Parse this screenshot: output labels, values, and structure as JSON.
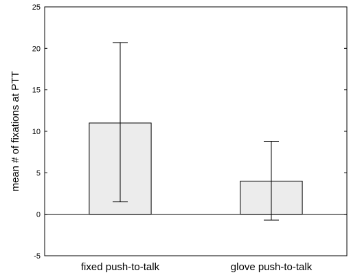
{
  "chart_data": {
    "type": "bar",
    "categories": [
      "fixed push-to-talk",
      "glove push-to-talk"
    ],
    "values": [
      11,
      4
    ],
    "error_low": [
      1.5,
      -0.7
    ],
    "error_high": [
      20.7,
      8.8
    ],
    "ylabel": "mean # of fixations at PTT",
    "xlabel": "",
    "ylim": [
      -5,
      25
    ],
    "yticks": [
      -5,
      0,
      5,
      10,
      15,
      20,
      25
    ],
    "grid": false,
    "bar_color": "#ececec",
    "zero_line": true
  }
}
